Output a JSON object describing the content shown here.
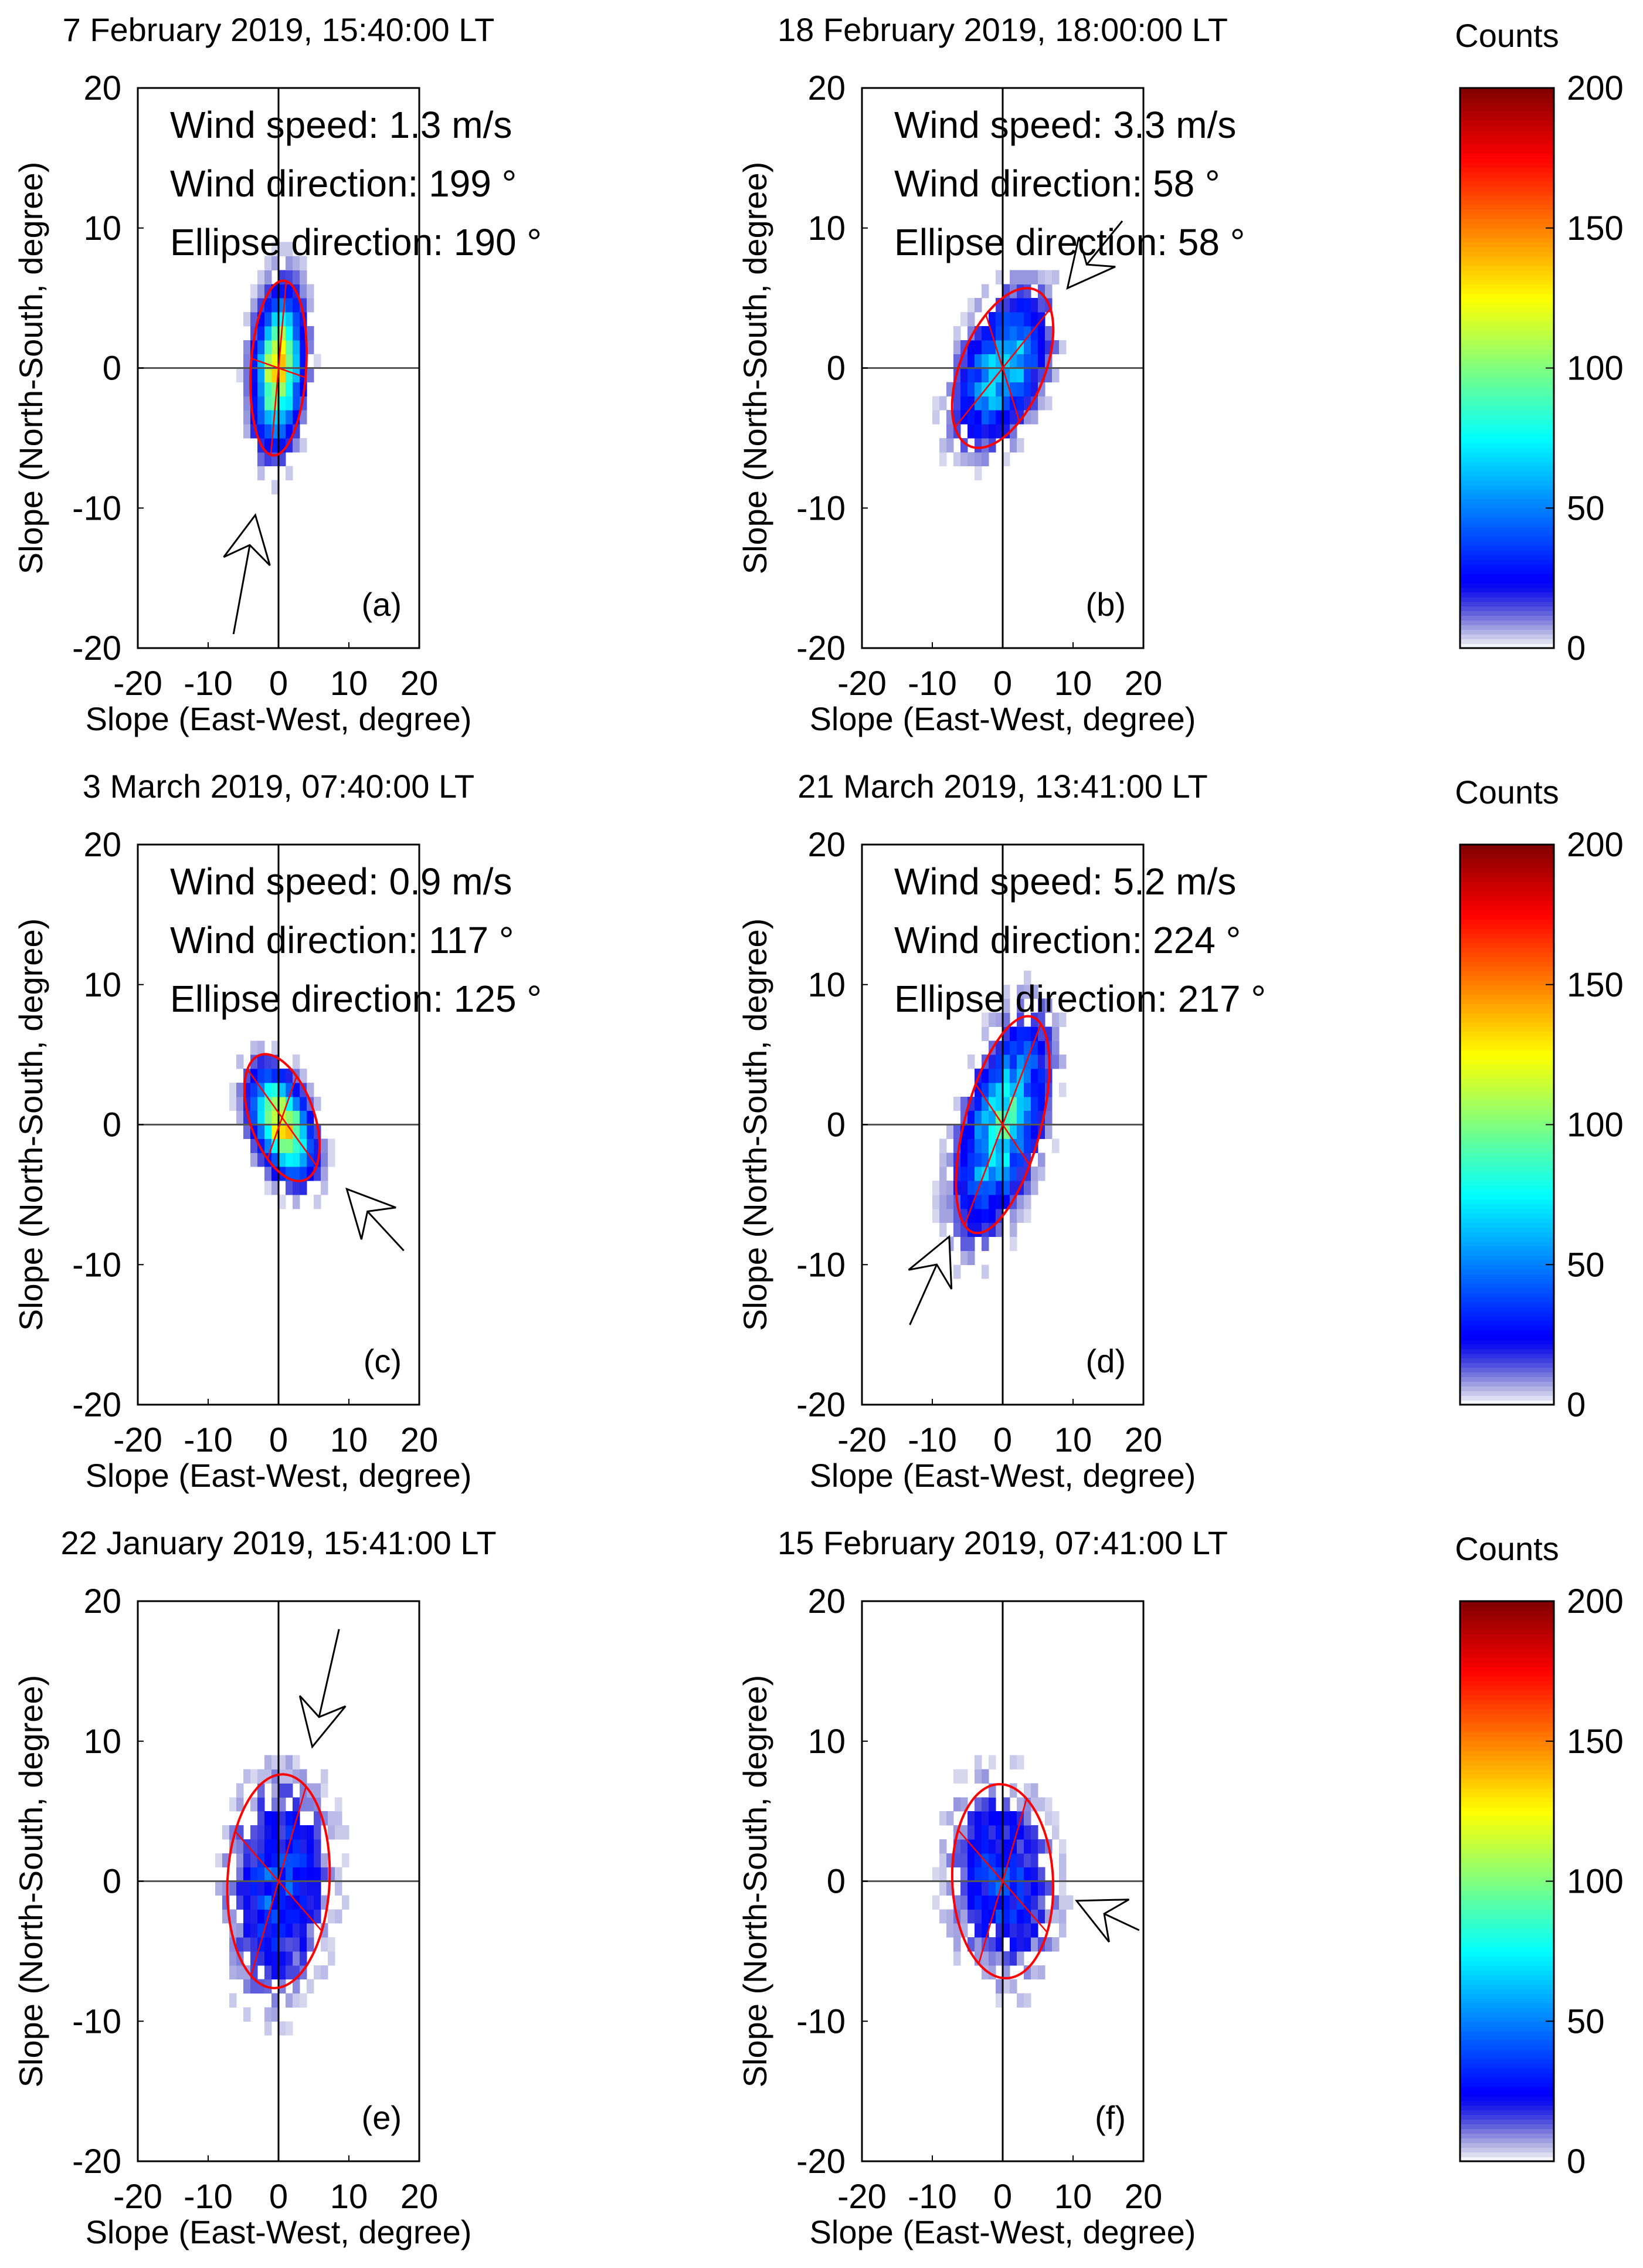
{
  "chart_data": [
    {
      "type": "heatmap",
      "panel": "(a)",
      "title": "7 February 2019, 15:40:00 LT",
      "xlabel": "Slope (East-West, degree)",
      "ylabel": "Slope (North-South, degree)",
      "xlim": [
        -20,
        20
      ],
      "ylim": [
        -20,
        20
      ],
      "xticks": [
        "-20",
        "-10",
        "0",
        "10",
        "20"
      ],
      "yticks": [
        "-20",
        "-10",
        "0",
        "10",
        "20"
      ],
      "annotations": [
        "Wind speed: 1.3 m/s",
        "Wind direction: 199 °",
        "Ellipse direction: 190 °"
      ],
      "wind_speed_mps": 1.3,
      "wind_direction_deg": 199,
      "ellipse_direction_deg": 190,
      "distribution": {
        "center": [
          0,
          0
        ],
        "sigma_major": 3.2,
        "sigma_minor": 2.0,
        "angle_deg": 190,
        "peak_count": 130,
        "noise": 0.15
      },
      "ellipse": {
        "center": [
          0,
          0
        ],
        "semi_major": 6.3,
        "semi_minor": 3.9,
        "orientation_deg": 190
      },
      "wind_arrow": {
        "from": [
          -6.4,
          -19
        ],
        "to": [
          -3.3,
          -10.5
        ]
      }
    },
    {
      "type": "heatmap",
      "panel": "(b)",
      "title": "18 February 2019, 18:00:00 LT",
      "xlabel": "Slope (East-West, degree)",
      "ylabel": "Slope (North-South, degree)",
      "xlim": [
        -20,
        20
      ],
      "ylim": [
        -20,
        20
      ],
      "xticks": [
        "-20",
        "-10",
        "0",
        "10",
        "20"
      ],
      "yticks": [
        "-20",
        "-10",
        "0",
        "10",
        "20"
      ],
      "annotations": [
        "Wind speed: 3.3 m/s",
        "Wind direction: 58 °",
        "Ellipse direction: 58 °"
      ],
      "wind_speed_mps": 3.3,
      "wind_direction_deg": 58,
      "ellipse_direction_deg": 58,
      "distribution": {
        "center": [
          0,
          0
        ],
        "sigma_major": 4.2,
        "sigma_minor": 2.5,
        "angle_deg": 58,
        "peak_count": 72,
        "noise": 0.3
      },
      "ellipse": {
        "center": [
          0,
          0
        ],
        "semi_major": 8.0,
        "semi_minor": 4.5,
        "orientation_deg": 58
      },
      "wind_arrow": {
        "from": [
          17,
          10.5
        ],
        "to": [
          9.2,
          5.7
        ]
      }
    },
    {
      "type": "heatmap",
      "panel": "(c)",
      "title": "3 March 2019, 07:40:00 LT",
      "xlabel": "Slope (East-West, degree)",
      "ylabel": "Slope (North-South, degree)",
      "xlim": [
        -20,
        20
      ],
      "ylim": [
        -20,
        20
      ],
      "xticks": [
        "-20",
        "-10",
        "0",
        "10",
        "20"
      ],
      "yticks": [
        "-20",
        "-10",
        "0",
        "10",
        "20"
      ],
      "annotations": [
        "Wind speed: 0.9 m/s",
        "Wind direction: 117 °",
        "Ellipse direction: 125 °"
      ],
      "wind_speed_mps": 0.9,
      "wind_direction_deg": 117,
      "ellipse_direction_deg": 125,
      "distribution": {
        "center": [
          0.5,
          0
        ],
        "sigma_major": 2.9,
        "sigma_minor": 1.8,
        "angle_deg": 125,
        "peak_count": 135,
        "noise": 0.12
      },
      "ellipse": {
        "center": [
          0.5,
          0.5
        ],
        "semi_major": 6.0,
        "semi_minor": 3.6,
        "orientation_deg": 125
      },
      "wind_arrow": {
        "from": [
          17.8,
          -9
        ],
        "to": [
          9.7,
          -4.6
        ]
      }
    },
    {
      "type": "heatmap",
      "panel": "(d)",
      "title": "21 March 2019, 13:41:00 LT",
      "xlabel": "Slope (East-West, degree)",
      "ylabel": "Slope (North-South, degree)",
      "xlim": [
        -20,
        20
      ],
      "ylim": [
        -20,
        20
      ],
      "xticks": [
        "-20",
        "-10",
        "0",
        "10",
        "20"
      ],
      "yticks": [
        "-20",
        "-10",
        "0",
        "10",
        "20"
      ],
      "annotations": [
        "Wind speed: 5.2 m/s",
        "Wind direction: 224 °",
        "Ellipse direction: 217 °"
      ],
      "wind_speed_mps": 5.2,
      "wind_direction_deg": 224,
      "ellipse_direction_deg": 217,
      "distribution": {
        "center": [
          0,
          0
        ],
        "sigma_major": 5.0,
        "sigma_minor": 2.7,
        "angle_deg": 217,
        "peak_count": 80,
        "noise": 0.3
      },
      "ellipse": {
        "center": [
          0,
          0
        ],
        "semi_major": 9.0,
        "semi_minor": 4.8,
        "orientation_deg": 217
      },
      "wind_arrow": {
        "from": [
          -13.2,
          -14.3
        ],
        "to": [
          -7.6,
          -8
        ]
      }
    },
    {
      "type": "heatmap",
      "panel": "(e)",
      "title": "22 January 2019, 15:41:00 LT",
      "xlabel": "Slope (East-West, degree)",
      "ylabel": "Slope (North-South, degree)",
      "xlim": [
        -20,
        20
      ],
      "ylim": [
        -20,
        20
      ],
      "xticks": [
        "-20",
        "-10",
        "0",
        "10",
        "20"
      ],
      "yticks": [
        "-20",
        "-10",
        "0",
        "10",
        "20"
      ],
      "annotations": [],
      "distribution": {
        "center": [
          0,
          -0.5
        ],
        "sigma_major": 4.6,
        "sigma_minor": 4.1,
        "angle_deg": 30,
        "peak_count": 38,
        "noise": 0.45
      },
      "ellipse": {
        "center": [
          0,
          0
        ],
        "semi_major": 7.8,
        "semi_minor": 7.1,
        "orientation_deg": 30
      },
      "wind_arrow": {
        "from": [
          8.6,
          18
        ],
        "to": [
          4.8,
          9.6
        ]
      }
    },
    {
      "type": "heatmap",
      "panel": "(f)",
      "title": "15 February 2019, 07:41:00 LT",
      "xlabel": "Slope (East-West, degree)",
      "ylabel": "Slope (North-South, degree)",
      "xlim": [
        -20,
        20
      ],
      "ylim": [
        -20,
        20
      ],
      "xticks": [
        "-20",
        "-10",
        "0",
        "10",
        "20"
      ],
      "yticks": [
        "-20",
        "-10",
        "0",
        "10",
        "20"
      ],
      "annotations": [],
      "distribution": {
        "center": [
          0,
          0
        ],
        "sigma_major": 4.5,
        "sigma_minor": 3.8,
        "angle_deg": 120,
        "peak_count": 36,
        "noise": 0.45
      },
      "ellipse": {
        "center": [
          0,
          0
        ],
        "semi_major": 7.3,
        "semi_minor": 6.8,
        "orientation_deg": 120
      },
      "wind_arrow": {
        "from": [
          19.4,
          -3.5
        ],
        "to": [
          10.5,
          -1.4
        ]
      }
    }
  ],
  "colorbar": {
    "label": "Counts",
    "ticks": [
      "0",
      "50",
      "100",
      "150",
      "200"
    ],
    "tick_values": [
      0,
      50,
      100,
      150,
      200
    ],
    "range": [
      0,
      200
    ],
    "colormap": "jet with white at zero"
  },
  "colors": {
    "ellipse": "#ff0000",
    "axes": "#000000",
    "zero_lines": "#555555",
    "arrow": "#000000"
  }
}
